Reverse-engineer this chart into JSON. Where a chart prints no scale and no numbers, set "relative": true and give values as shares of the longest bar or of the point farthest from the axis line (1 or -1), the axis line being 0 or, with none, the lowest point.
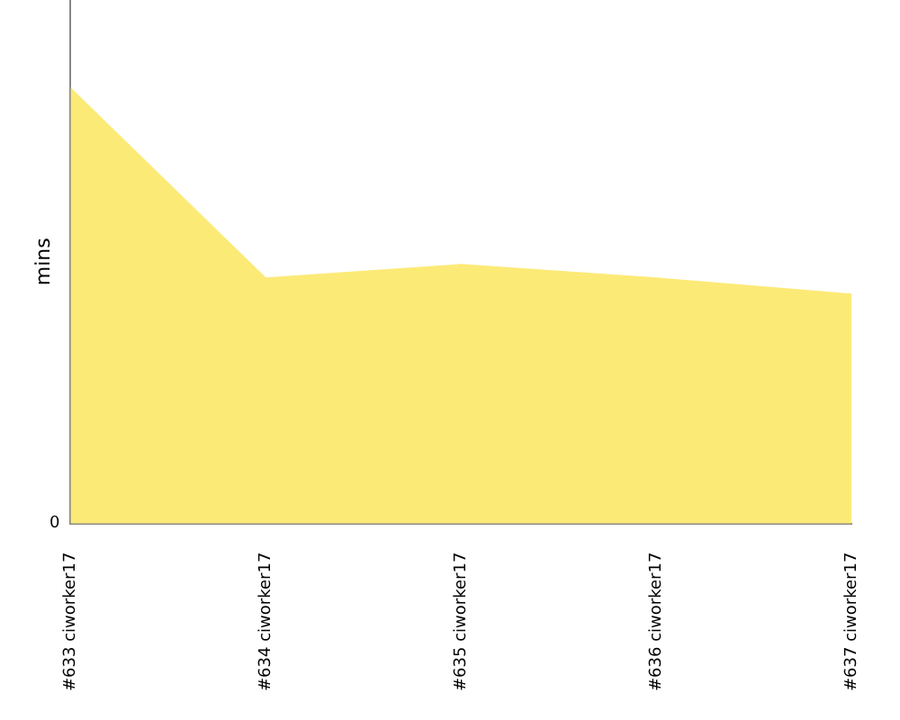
{
  "chart_data": {
    "type": "area",
    "ylabel": "mins",
    "relative": true,
    "annotations": [
      "0"
    ],
    "grid": false,
    "legend": false,
    "categories": [
      "#633 ciworker17",
      "#634 ciworker17",
      "#635 ciworker17",
      "#636 ciworker17",
      "#637 ciworker17"
    ],
    "series": [
      {
        "color": "#fcea77",
        "values": [
          1,
          0.564,
          0.595,
          0.564,
          0.527
        ]
      }
    ]
  }
}
